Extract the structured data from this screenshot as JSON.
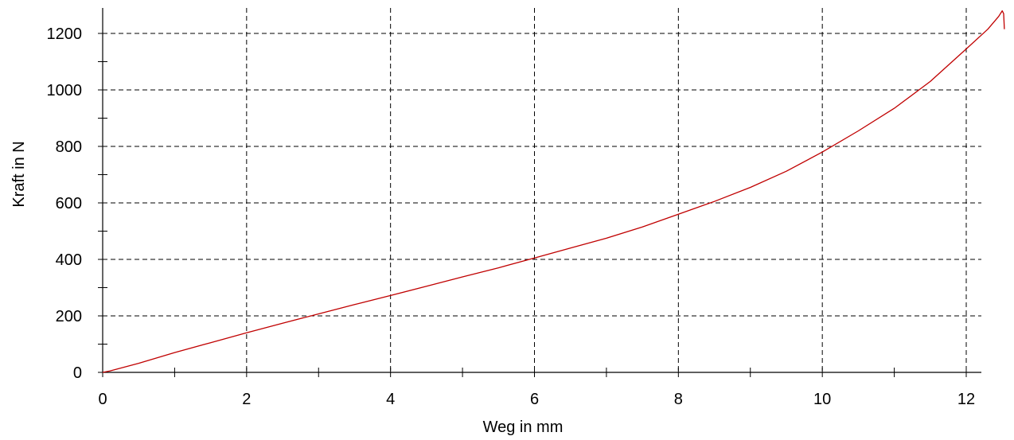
{
  "chart_data": {
    "type": "line",
    "title": "",
    "xlabel": "Weg in mm",
    "ylabel": "Kraft in N",
    "xlim": [
      0,
      12.55
    ],
    "ylim": [
      0,
      1290
    ],
    "x_ticks": [
      0,
      2,
      4,
      6,
      8,
      10,
      12
    ],
    "x_tick_labels": [
      "0",
      "2",
      "4",
      "6",
      "8",
      "10",
      "12"
    ],
    "x_minor_ticks": [
      1,
      3,
      5,
      7,
      9,
      11
    ],
    "y_ticks": [
      0,
      200,
      400,
      600,
      800,
      1000,
      1200
    ],
    "y_tick_labels": [
      "0",
      "200",
      "400",
      "600",
      "800",
      "1000",
      "1200"
    ],
    "y_minor_ticks": [
      100,
      300,
      500,
      700,
      900,
      1100
    ],
    "grid": true,
    "legend": "none",
    "colors": {
      "series": "#c00000",
      "grid": "#000000",
      "axis": "#000000"
    },
    "series": [
      {
        "x": [
          0,
          0.1,
          0.5,
          1,
          1.5,
          2,
          2.5,
          3,
          3.5,
          4,
          4.5,
          5,
          5.5,
          6,
          6.5,
          7,
          7.5,
          8,
          8.5,
          9,
          9.5,
          10,
          10.5,
          11,
          11.5,
          12,
          12.3,
          12.45,
          12.5,
          12.52,
          12.53
        ],
        "y": [
          0,
          5,
          32,
          70,
          105,
          140,
          174,
          207,
          240,
          272,
          305,
          338,
          370,
          405,
          440,
          475,
          515,
          560,
          605,
          655,
          712,
          780,
          855,
          935,
          1030,
          1145,
          1215,
          1260,
          1280,
          1270,
          1215
        ]
      }
    ]
  }
}
